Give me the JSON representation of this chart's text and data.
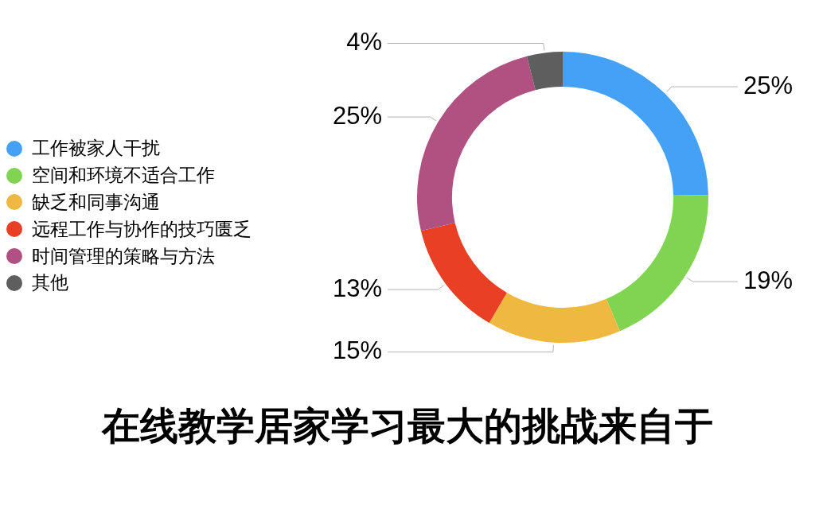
{
  "chart_data": {
    "type": "donut",
    "title": "在线教学居家学习最大的挑战来自于",
    "categories": [
      "工作被家人干扰",
      "空间和环境不适合工作",
      "缺乏和同事沟通",
      "远程工作与协作的技巧匮乏",
      "时间管理的策略与方法",
      "其他"
    ],
    "values": [
      25,
      19,
      15,
      13,
      25,
      4
    ],
    "colors": [
      "#45a1f6",
      "#81d452",
      "#efb941",
      "#e94025",
      "#b05181",
      "#5e5e5e"
    ],
    "value_labels": [
      "25%",
      "19%",
      "15%",
      "13%",
      "25%",
      "4%"
    ],
    "legend": "left"
  }
}
